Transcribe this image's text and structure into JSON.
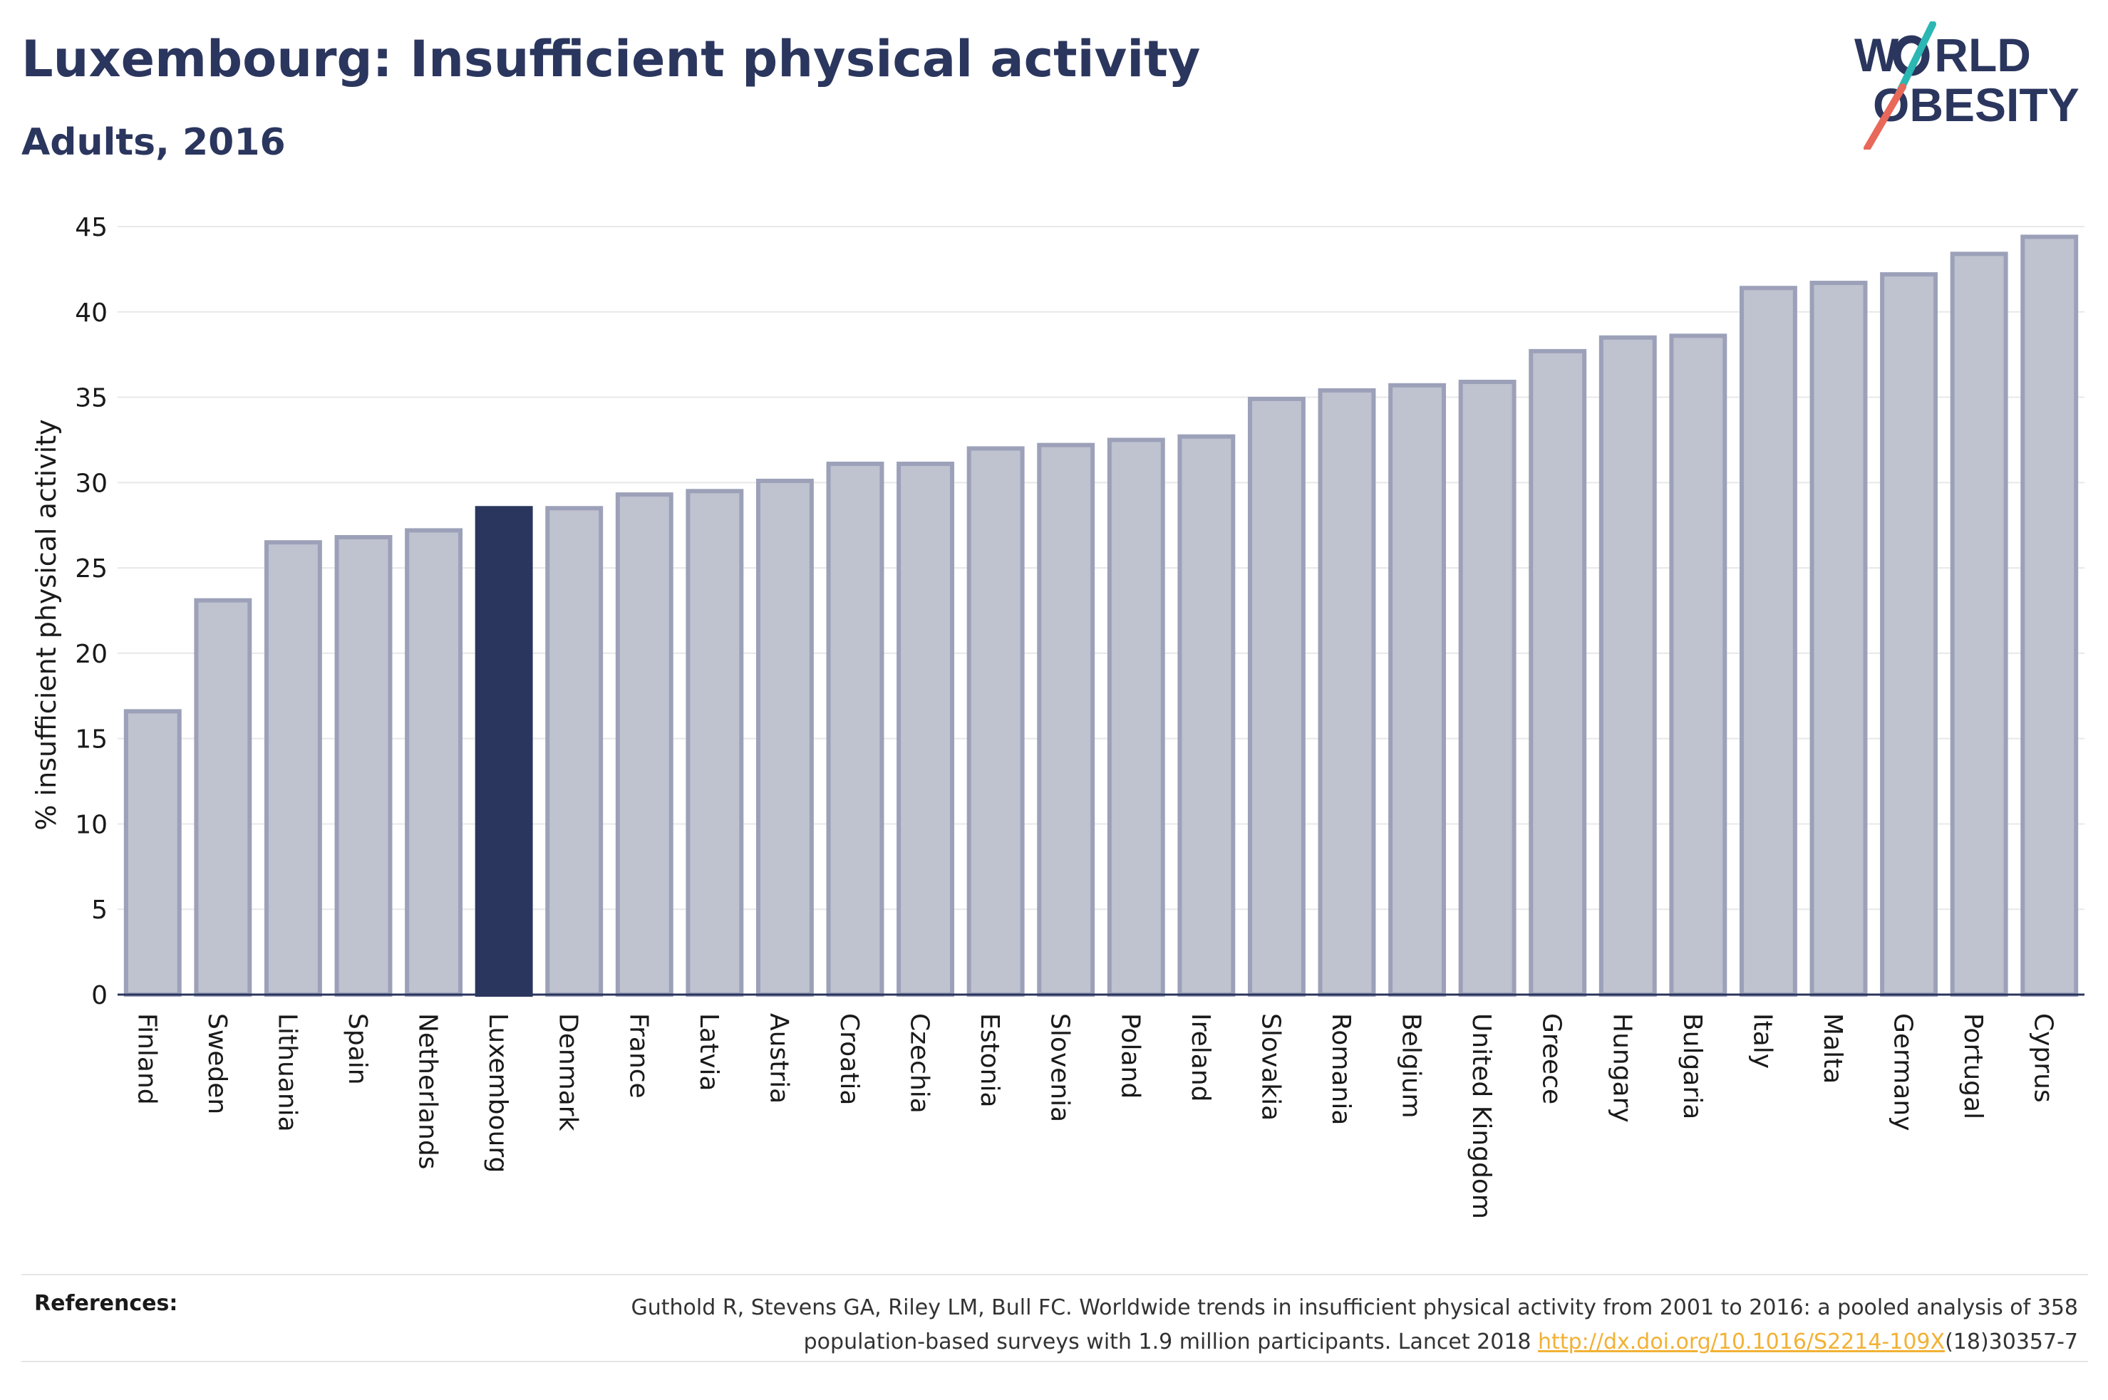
{
  "header": {
    "title": "Luxembourg: Insufficient physical activity",
    "subtitle": "Adults, 2016"
  },
  "logo": {
    "line1_a": "W",
    "line1_b": "RLD",
    "line2_a": "O",
    "line2_b": "BESITY",
    "colors": {
      "navy": "#2b365e",
      "slash_top": "#2bb7b3",
      "slash_bottom": "#e8685a"
    }
  },
  "references": {
    "label": "References:",
    "text_before": "Guthold R, Stevens GA, Riley LM, Bull FC. Worldwide trends in insufficient physical activity from 2001 to 2016: a pooled analysis of 358 population-based surveys with 1.9 million participants. Lancet 2018 ",
    "link_text": "http://dx.doi.org/10.1016/S2214-109X",
    "text_after": "(18)30357-7"
  },
  "colors": {
    "bar_fill": "#bfc2cf",
    "bar_stroke": "#9ca1b9",
    "highlight": "#2b365e",
    "grid": "#e8e8e8",
    "axis": "#2b365e"
  },
  "chart_data": {
    "type": "bar",
    "title": "Luxembourg: Insufficient physical activity",
    "subtitle": "Adults, 2016",
    "ylabel": "% insufficient physical activity",
    "xlabel": "",
    "ylim": [
      0,
      45
    ],
    "yticks": [
      0,
      5,
      10,
      15,
      20,
      25,
      30,
      35,
      40,
      45
    ],
    "grid": true,
    "highlight": "Luxembourg",
    "categories": [
      "Finland",
      "Sweden",
      "Lithuania",
      "Spain",
      "Netherlands",
      "Luxembourg",
      "Denmark",
      "France",
      "Latvia",
      "Austria",
      "Croatia",
      "Czechia",
      "Estonia",
      "Slovenia",
      "Poland",
      "Ireland",
      "Slovakia",
      "Romania",
      "Belgium",
      "United Kingdom",
      "Greece",
      "Hungary",
      "Bulgaria",
      "Italy",
      "Malta",
      "Germany",
      "Portugal",
      "Cyprus"
    ],
    "values": [
      16.6,
      23.1,
      26.5,
      26.8,
      27.2,
      28.5,
      28.5,
      29.3,
      29.5,
      30.1,
      31.1,
      31.1,
      32.0,
      32.2,
      32.5,
      32.7,
      34.9,
      35.4,
      35.7,
      35.9,
      37.7,
      38.5,
      38.6,
      41.4,
      41.7,
      42.2,
      43.4,
      44.4
    ]
  }
}
